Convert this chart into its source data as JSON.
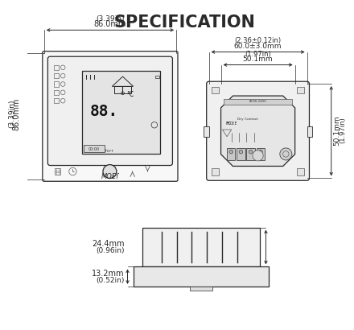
{
  "title": "SPECIFICATION",
  "bg_color": "#ffffff",
  "line_color": "#2a2a2a",
  "text_color": "#2a2a2a",
  "dims": {
    "front_width_mm": "86.0mm",
    "front_width_in": "(3.39in)",
    "front_height_mm": "86.0mm",
    "front_height_in": "(3.39in)",
    "back_outer_mm": "60.0±3.0mm",
    "back_outer_in": "(2.36±0.12in)",
    "back_inner_mm": "50.1mm",
    "back_inner_in": "(1.97in)",
    "back_height_mm": "50.1mm",
    "back_height_in": "(1.97in)",
    "depth1_mm": "24.4mm",
    "depth1_in": "(0.96in)",
    "depth2_mm": "13.2mm",
    "depth2_in": "(0.52in)"
  }
}
